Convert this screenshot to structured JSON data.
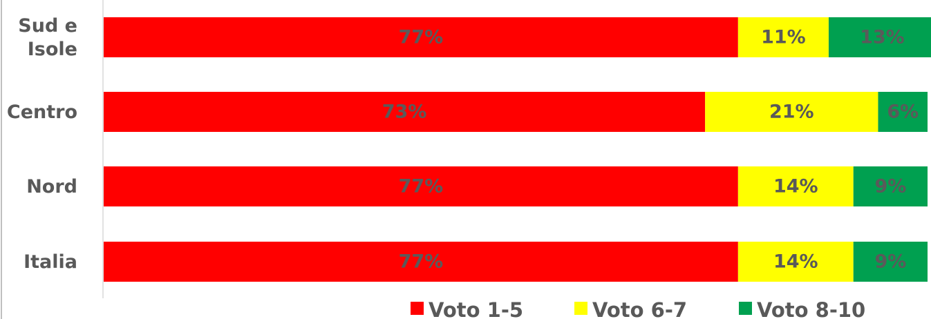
{
  "chart_data": {
    "type": "bar",
    "orientation": "horizontal",
    "stacked": true,
    "percent": true,
    "categories": [
      [
        "Sud e",
        "Isole"
      ],
      [
        "Centro"
      ],
      [
        "Nord"
      ],
      [
        "Italia"
      ]
    ],
    "series": [
      {
        "name": "Voto 1-5",
        "color": "#ff0000",
        "label_color": "#5a5a5a",
        "values": [
          77,
          73,
          77,
          77
        ],
        "labels": [
          "77%",
          "73%",
          "77%",
          "77%"
        ]
      },
      {
        "name": "Voto 6-7",
        "color": "#ffff00",
        "label_color": "#595959",
        "values": [
          11,
          21,
          14,
          14
        ],
        "labels": [
          "11%",
          "21%",
          "14%",
          "14%"
        ]
      },
      {
        "name": "Voto 8-10",
        "color": "#00a050",
        "label_color": "#5a5a5a",
        "values": [
          13,
          6,
          9,
          9
        ],
        "labels": [
          "13%",
          "6%",
          "9%",
          "9%"
        ]
      }
    ],
    "xlim": [
      0,
      100
    ],
    "grid": false,
    "legend": "bottom"
  }
}
